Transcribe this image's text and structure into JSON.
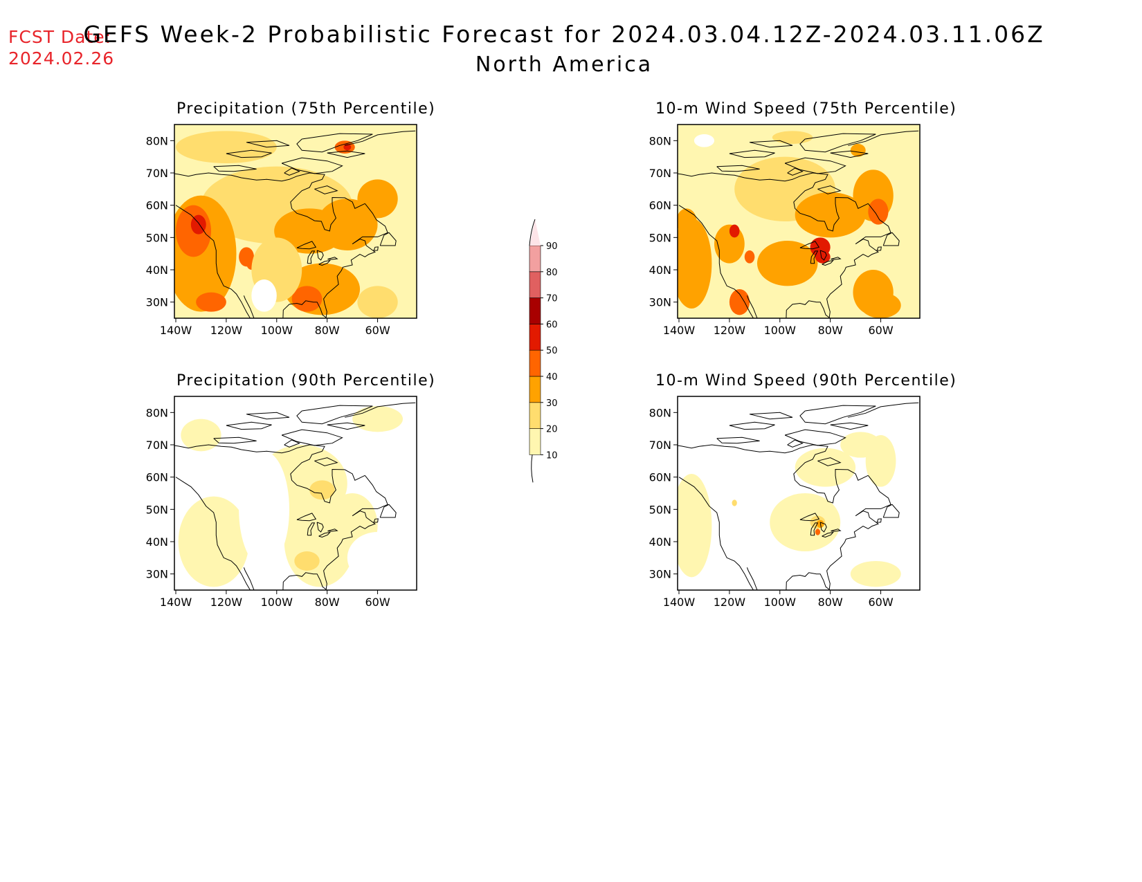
{
  "header": {
    "fcst_label": "FCST Date:",
    "fcst_date": "2024.02.26",
    "title": "GEFS Week-2 Probabilistic Forecast for 2024.03.04.12Z-2024.03.11.06Z",
    "subtitle": "North America"
  },
  "map_axes": {
    "lat_labels": [
      "80N",
      "70N",
      "60N",
      "50N",
      "40N",
      "30N"
    ],
    "lon_labels": [
      "140W",
      "120W",
      "100W",
      "80W",
      "60W"
    ]
  },
  "panels": [
    {
      "title": "Precipitation (75th Percentile)"
    },
    {
      "title": "10-m Wind Speed (75th Percentile)"
    },
    {
      "title": "Precipitation (90th Percentile)"
    },
    {
      "title": "10-m Wind Speed (90th Percentile)"
    }
  ],
  "colorbar": {
    "levels": [
      "90",
      "80",
      "70",
      "60",
      "50",
      "40",
      "30",
      "20",
      "10"
    ],
    "colors": {
      "10-20": "#fff6b0",
      "20-30": "#ffdd6e",
      "30-40": "#ffa200",
      "40-50": "#ff6500",
      "50-60": "#e21a00",
      "60-70": "#a80000",
      "70-80": "#e06060",
      "80-90": "#f2a0a0",
      "90+": "#fde4e8"
    }
  }
}
